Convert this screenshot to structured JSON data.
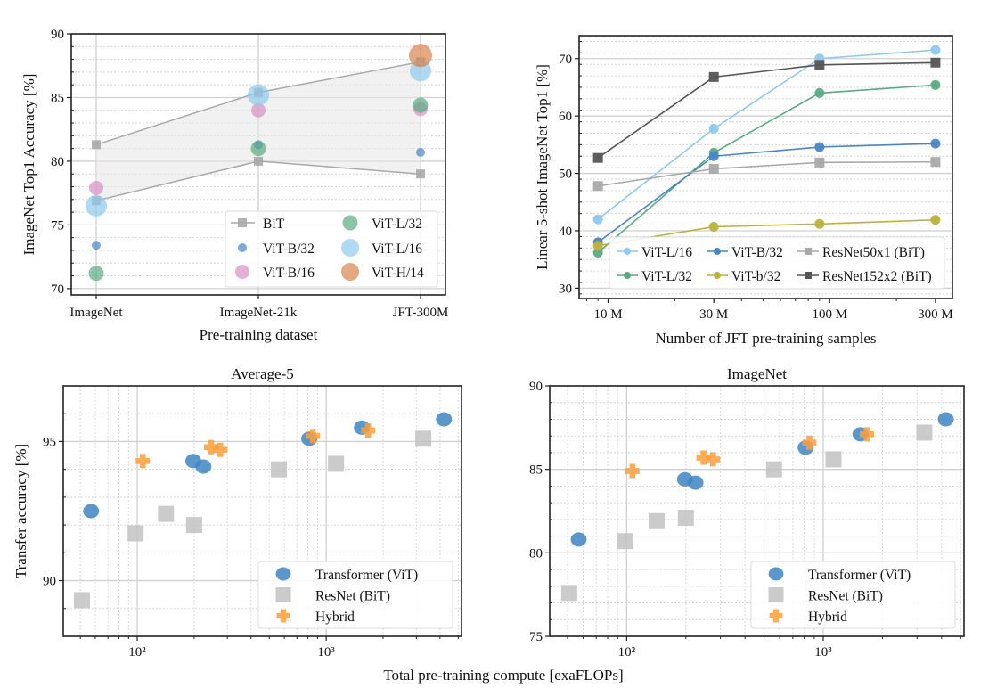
{
  "colors": {
    "bit": "#a9a9a9",
    "vit_b32": "#4a86c3",
    "vit_b16": "#d690c3",
    "vit_l32": "#5aab82",
    "vit_l16": "#8ec9ef",
    "vit_h14": "#d9844f",
    "vit_b32_small": "#bdb23c",
    "resnet152": "#555555",
    "vit_scatter": "#3e85c2",
    "resnet_scatter": "#c2c2c2",
    "hybrid": "#ff9d3a"
  },
  "shared_xlabel": "Total pre-training compute [exaFLOPs]",
  "chart_data": [
    {
      "type": "scatter",
      "xlabel": "Pre-training dataset",
      "ylabel": "ImageNet Top1 Accuracy [%]",
      "categories": [
        "ImageNet",
        "ImageNet-21k",
        "JFT-300M"
      ],
      "ylim": [
        69.5,
        90
      ],
      "yticks": [
        70,
        75,
        80,
        85,
        90
      ],
      "grid": true,
      "legend": "lower-right",
      "band": {
        "name": "BiT",
        "upper": [
          81.3,
          85.4,
          87.8
        ],
        "lower": [
          76.9,
          80.0,
          79.0
        ]
      },
      "series": [
        {
          "name": "ViT-B/32",
          "color_key": "vit_b32",
          "values": [
            73.4,
            81.3,
            80.7
          ]
        },
        {
          "name": "ViT-B/16",
          "color_key": "vit_b16",
          "values": [
            77.9,
            84.0,
            84.1
          ]
        },
        {
          "name": "ViT-L/32",
          "color_key": "vit_l32",
          "values": [
            71.2,
            81.0,
            84.4
          ]
        },
        {
          "name": "ViT-L/16",
          "color_key": "vit_l16",
          "values": [
            76.5,
            85.2,
            87.1
          ]
        },
        {
          "name": "ViT-H/14",
          "color_key": "vit_h14",
          "values": [
            null,
            null,
            88.3
          ]
        }
      ]
    },
    {
      "type": "line",
      "xlabel": "Number of JFT pre-training samples",
      "ylabel": "Linear 5-shot ImageNet Top1 [%]",
      "xscale": "log",
      "x": [
        9,
        30,
        90,
        300
      ],
      "xlim": [
        7.4,
        358
      ],
      "xticks": [
        10,
        30,
        100,
        300
      ],
      "xticklabels": [
        "10 M",
        "30 M",
        "100 M",
        "300 M"
      ],
      "ylim": [
        28.2,
        74
      ],
      "yticks": [
        30,
        40,
        50,
        60,
        70
      ],
      "grid": true,
      "legend": "bottom",
      "series": [
        {
          "name": "ViT-L/16",
          "color_key": "vit_l16",
          "marker": "circle",
          "values": [
            42.0,
            57.8,
            70.0,
            71.5
          ]
        },
        {
          "name": "ViT-L/32",
          "color_key": "vit_l32",
          "marker": "circle",
          "values": [
            36.2,
            53.6,
            64.0,
            65.4
          ]
        },
        {
          "name": "ViT-B/32",
          "color_key": "vit_b32",
          "marker": "circle",
          "values": [
            38.0,
            53.0,
            54.6,
            55.2
          ]
        },
        {
          "name": "ViT-b/32",
          "color_key": "vit_b32_small",
          "marker": "circle",
          "values": [
            37.4,
            40.7,
            41.2,
            41.9
          ]
        },
        {
          "name": "ResNet50x1 (BiT)",
          "color_key": "bit",
          "marker": "square",
          "values": [
            47.8,
            50.8,
            51.9,
            52.0
          ]
        },
        {
          "name": "ResNet152x2 (BiT)",
          "color_key": "resnet152",
          "marker": "square",
          "values": [
            52.7,
            66.8,
            68.9,
            69.3
          ]
        }
      ]
    },
    {
      "type": "scatter",
      "title": "Average-5",
      "ylabel": "Transfer accuracy [%]",
      "xscale": "log",
      "xlim": [
        40.6,
        5200
      ],
      "xticks": [
        100,
        1000
      ],
      "xticklabels": [
        "10²",
        "10³"
      ],
      "ylim": [
        88,
        97
      ],
      "yticks": [
        90,
        95
      ],
      "grid": true,
      "legend": "lower-right",
      "series": [
        {
          "name": "Transformer (ViT)",
          "color_key": "vit_scatter",
          "marker": "ellipse",
          "points": [
            [
              57,
              92.5
            ],
            [
              198,
              94.3
            ],
            [
              224,
              94.1
            ],
            [
              813,
              95.1
            ],
            [
              1545,
              95.5
            ],
            [
              4200,
              95.8
            ]
          ]
        },
        {
          "name": "ResNet (BiT)",
          "color_key": "resnet_scatter",
          "marker": "square",
          "points": [
            [
              51,
              89.3
            ],
            [
              98,
              91.7
            ],
            [
              142,
              92.4
            ],
            [
              200,
              92.0
            ],
            [
              562,
              94.0
            ],
            [
              1127,
              94.2
            ],
            [
              3265,
              95.1
            ]
          ]
        },
        {
          "name": "Hybrid",
          "color_key": "hybrid",
          "marker": "plus",
          "points": [
            [
              107,
              94.3
            ],
            [
              246,
              94.8
            ],
            [
              275,
              94.7
            ],
            [
              850,
              95.2
            ],
            [
              1667,
              95.4
            ]
          ]
        }
      ]
    },
    {
      "type": "scatter",
      "title": "ImageNet",
      "xscale": "log",
      "xlim": [
        40.6,
        5200
      ],
      "xticks": [
        100,
        1000
      ],
      "xticklabels": [
        "10²",
        "10³"
      ],
      "ylim": [
        75,
        90
      ],
      "yticks": [
        75,
        80,
        85,
        90
      ],
      "grid": true,
      "legend": "lower-right",
      "series": [
        {
          "name": "Transformer (ViT)",
          "color_key": "vit_scatter",
          "marker": "ellipse",
          "points": [
            [
              57,
              80.8
            ],
            [
              198,
              84.4
            ],
            [
              224,
              84.2
            ],
            [
              813,
              86.3
            ],
            [
              1545,
              87.1
            ],
            [
              4200,
              88.0
            ]
          ]
        },
        {
          "name": "ResNet (BiT)",
          "color_key": "resnet_scatter",
          "marker": "square",
          "points": [
            [
              51,
              77.6
            ],
            [
              98,
              80.7
            ],
            [
              142,
              81.9
            ],
            [
              200,
              82.1
            ],
            [
              562,
              85.0
            ],
            [
              1127,
              85.6
            ],
            [
              3265,
              87.2
            ]
          ]
        },
        {
          "name": "Hybrid",
          "color_key": "hybrid",
          "marker": "plus",
          "points": [
            [
              107,
              84.9
            ],
            [
              246,
              85.7
            ],
            [
              275,
              85.6
            ],
            [
              850,
              86.6
            ],
            [
              1667,
              87.1
            ]
          ]
        }
      ]
    }
  ]
}
